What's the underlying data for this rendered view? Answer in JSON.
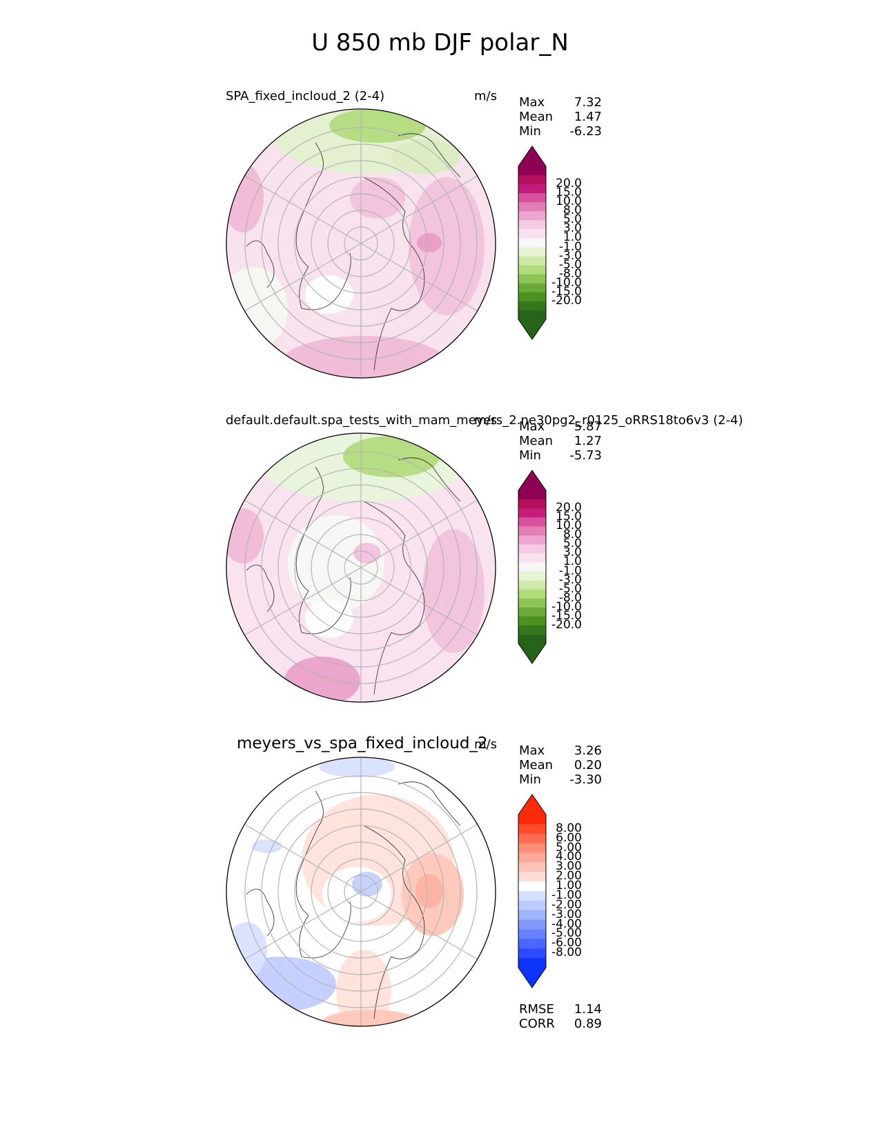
{
  "title": "U 850 mb DJF polar_N",
  "panels": [
    {
      "title": "SPA_fixed_incloud_2 (2-4)",
      "units": "m/s",
      "stats": {
        "max_label": "Max",
        "max": "7.32",
        "mean_label": "Mean",
        "mean": "1.47",
        "min_label": "Min",
        "min": "-6.23"
      },
      "colorbar": {
        "ticks": [
          "20.0",
          "15.0",
          "10.0",
          "8.0",
          "5.0",
          "3.0",
          "1.0",
          "-1.0",
          "-3.0",
          "-5.0",
          "-8.0",
          "-10.0",
          "-15.0",
          "-20.0"
        ],
        "colors": [
          "#8e0152",
          "#b5105f",
          "#c51b7d",
          "#d6529c",
          "#e27fb5",
          "#eca6cf",
          "#f4cbe3",
          "#f9e0ee",
          "#f7f7f7",
          "#e6f4d4",
          "#cfeaa8",
          "#b0dc7c",
          "#8fc457",
          "#6aa93a",
          "#4d9221",
          "#38761d",
          "#276419"
        ],
        "under": "#276419",
        "over": "#8e0152"
      }
    },
    {
      "title": "default.default.spa_tests_with_mam_meyers_2.ne30pg2_r0125_oRRS18to6v3 (2-4)",
      "units": "m/s",
      "stats": {
        "max_label": "Max",
        "max": "5.87",
        "mean_label": "Mean",
        "mean": "1.27",
        "min_label": "Min",
        "min": "-5.73"
      },
      "colorbar": {
        "ticks": [
          "20.0",
          "15.0",
          "10.0",
          "8.0",
          "5.0",
          "3.0",
          "1.0",
          "-1.0",
          "-3.0",
          "-5.0",
          "-8.0",
          "-10.0",
          "-15.0",
          "-20.0"
        ],
        "colors": [
          "#8e0152",
          "#b5105f",
          "#c51b7d",
          "#d6529c",
          "#e27fb5",
          "#eca6cf",
          "#f4cbe3",
          "#f9e0ee",
          "#f7f7f7",
          "#e6f4d4",
          "#cfeaa8",
          "#b0dc7c",
          "#8fc457",
          "#6aa93a",
          "#4d9221",
          "#38761d",
          "#276419"
        ],
        "under": "#276419",
        "over": "#8e0152"
      }
    },
    {
      "title": "meyers_vs_spa_fixed_incloud_2",
      "units": "m/s",
      "stats": {
        "max_label": "Max",
        "max": "3.26",
        "mean_label": "Mean",
        "mean": "0.20",
        "min_label": "Min",
        "min": "-3.30"
      },
      "colorbar": {
        "ticks": [
          "8.00",
          "6.00",
          "5.00",
          "4.00",
          "3.00",
          "2.00",
          "1.00",
          "-1.00",
          "-2.00",
          "-3.00",
          "-4.00",
          "-5.00",
          "-6.00",
          "-8.00"
        ],
        "colors": [
          "#ff2a0a",
          "#ff4a2b",
          "#ff6b4f",
          "#ff8c76",
          "#ffa99a",
          "#ffc4b8",
          "#ffdcd4",
          "#ffffff",
          "#d8e0ff",
          "#bccaff",
          "#a0b3ff",
          "#8499ff",
          "#6680ff",
          "#4a66ff",
          "#2c4bff",
          "#0d33ff"
        ],
        "under": "#0d33ff",
        "over": "#ff2a0a"
      },
      "metrics": {
        "rmse_label": "RMSE",
        "rmse": "1.14",
        "corr_label": "CORR",
        "corr": "0.89"
      }
    }
  ],
  "chart_data": [
    {
      "type": "heatmap",
      "projection": "north polar stereographic",
      "title": "SPA_fixed_incloud_2 (2-4)",
      "units": "m/s",
      "max": 7.32,
      "mean": 1.47,
      "min": -6.23,
      "levels": [
        -20,
        -15,
        -10,
        -8,
        -5,
        -3,
        -1,
        1,
        3,
        5,
        8,
        10,
        15,
        20
      ]
    },
    {
      "type": "heatmap",
      "projection": "north polar stereographic",
      "title": "default.default.spa_tests_with_mam_meyers_2.ne30pg2_r0125_oRRS18to6v3 (2-4)",
      "units": "m/s",
      "max": 5.87,
      "mean": 1.27,
      "min": -5.73,
      "levels": [
        -20,
        -15,
        -10,
        -8,
        -5,
        -3,
        -1,
        1,
        3,
        5,
        8,
        10,
        15,
        20
      ]
    },
    {
      "type": "heatmap",
      "projection": "north polar stereographic",
      "title": "meyers_vs_spa_fixed_incloud_2",
      "units": "m/s",
      "max": 3.26,
      "mean": 0.2,
      "min": -3.3,
      "levels": [
        -8,
        -6,
        -5,
        -4,
        -3,
        -2,
        -1,
        1,
        2,
        3,
        4,
        5,
        6,
        8
      ],
      "rmse": 1.14,
      "corr": 0.89
    }
  ]
}
